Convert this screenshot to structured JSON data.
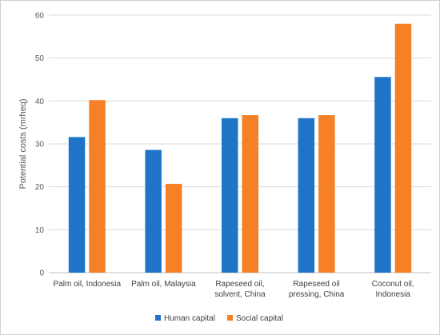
{
  "chart_data": {
    "type": "bar",
    "title": "",
    "xlabel": "",
    "ylabel": "Potential costs (mrheq)",
    "ylim": [
      0,
      60
    ],
    "yticks": [
      0,
      10,
      20,
      30,
      40,
      50,
      60
    ],
    "grid": true,
    "legend_position": "bottom",
    "categories": [
      [
        "Palm oil, Indonesia"
      ],
      [
        "Palm oil, Malaysia"
      ],
      [
        "Rapeseed oil,",
        "solvent, China"
      ],
      [
        "Rapeseed oil",
        "pressing, China"
      ],
      [
        "Coconut oil,",
        "Indonesia"
      ]
    ],
    "series": [
      {
        "name": "Human capital",
        "color": "#1f74c8",
        "values": [
          31.6,
          28.6,
          36.0,
          36.0,
          45.6
        ]
      },
      {
        "name": "Social capital",
        "color": "#f58025",
        "values": [
          40.2,
          20.7,
          36.7,
          36.7,
          58.0
        ]
      }
    ]
  }
}
